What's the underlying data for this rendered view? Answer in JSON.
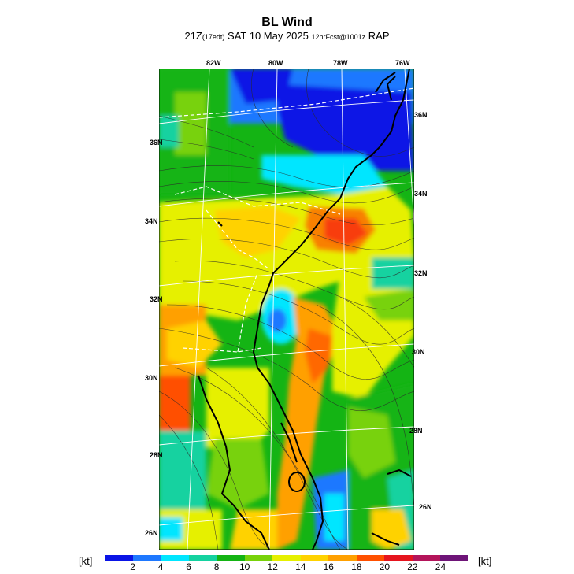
{
  "header": {
    "title": "BL Wind",
    "subtitle_time": "21Z",
    "subtitle_local": "(17edt)",
    "subtitle_date": " SAT 10 May 2025 ",
    "subtitle_fcst": "12hrFcst@1001z",
    "subtitle_model": " RAP"
  },
  "map": {
    "lon_labels": [
      "82W",
      "80W",
      "78W",
      "76W"
    ],
    "lat_labels_left": [
      "36N",
      "34N",
      "32N",
      "30N",
      "28N",
      "26N"
    ],
    "lat_labels_right": [
      "36N",
      "34N",
      "32N",
      "30N",
      "28N",
      "26N"
    ]
  },
  "colorbar": {
    "unit_left": "[kt]",
    "unit_right": "[kt]",
    "labels": [
      "2",
      "4",
      "6",
      "8",
      "10",
      "12",
      "14",
      "16",
      "18",
      "20",
      "22",
      "24"
    ],
    "colors": [
      "#0a14e6",
      "#1e78ff",
      "#00e6ff",
      "#14d2a0",
      "#14b414",
      "#78d20a",
      "#e6f000",
      "#ffd200",
      "#ffa000",
      "#ff5000",
      "#e6141e",
      "#b4145a",
      "#6e1478"
    ]
  }
}
